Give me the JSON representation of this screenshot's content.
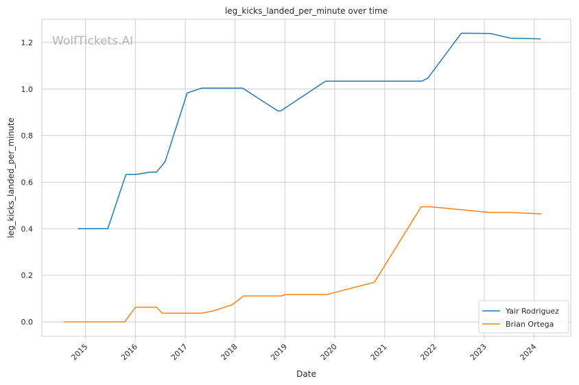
{
  "watermark": "WolfTickets.AI",
  "chart_data": {
    "type": "line",
    "title": "leg_kicks_landed_per_minute over time",
    "xlabel": "Date",
    "ylabel": "leg_kicks_landed_per_minute",
    "x_type": "date",
    "xlim": [
      "2014-02-15",
      "2024-09-25"
    ],
    "ylim": [
      -0.062,
      1.3
    ],
    "x_ticks": [
      "2015-01-01",
      "2016-01-01",
      "2017-01-01",
      "2018-01-01",
      "2019-01-01",
      "2020-01-01",
      "2021-01-01",
      "2022-01-01",
      "2023-01-01",
      "2024-01-01"
    ],
    "x_tick_labels": [
      "2015",
      "2016",
      "2017",
      "2018",
      "2019",
      "2020",
      "2021",
      "2022",
      "2023",
      "2024"
    ],
    "y_ticks": [
      0.0,
      0.2,
      0.4,
      0.6,
      0.8,
      1.0,
      1.2
    ],
    "y_tick_labels": [
      "0.0",
      "0.2",
      "0.4",
      "0.6",
      "0.8",
      "1.0",
      "1.2"
    ],
    "grid": true,
    "legend_position": "bottom-right",
    "series": [
      {
        "name": "Yair Rodriguez",
        "color": "#1f77b4",
        "points": [
          [
            "2014-11-08",
            0.4
          ],
          [
            "2015-06-13",
            0.4
          ],
          [
            "2015-10-24",
            0.633
          ],
          [
            "2016-01-03",
            0.633
          ],
          [
            "2016-04-16",
            0.643
          ],
          [
            "2016-06-04",
            0.643
          ],
          [
            "2016-08-06",
            0.688
          ],
          [
            "2017-01-15",
            0.983
          ],
          [
            "2017-05-01",
            1.004
          ],
          [
            "2017-09-01",
            1.004
          ],
          [
            "2018-02-24",
            1.004
          ],
          [
            "2018-11-10",
            0.906
          ],
          [
            "2018-12-01",
            0.906
          ],
          [
            "2019-09-25",
            1.022
          ],
          [
            "2019-10-26",
            1.034
          ],
          [
            "2020-11-01",
            1.034
          ],
          [
            "2021-10-01",
            1.034
          ],
          [
            "2021-11-13",
            1.047
          ],
          [
            "2022-07-16",
            1.24
          ],
          [
            "2023-02-11",
            1.239
          ],
          [
            "2023-07-08",
            1.219
          ],
          [
            "2024-02-17",
            1.215
          ]
        ]
      },
      {
        "name": "Brian Ortega",
        "color": "#ff7f0e",
        "points": [
          [
            "2014-07-26",
            0.0
          ],
          [
            "2015-06-01",
            0.0
          ],
          [
            "2015-10-15",
            0.0
          ],
          [
            "2016-01-02",
            0.063
          ],
          [
            "2016-06-04",
            0.063
          ],
          [
            "2016-07-16",
            0.037
          ],
          [
            "2017-05-01",
            0.037
          ],
          [
            "2017-08-01",
            0.048
          ],
          [
            "2017-12-09",
            0.073
          ],
          [
            "2018-03-03",
            0.111
          ],
          [
            "2018-08-01",
            0.111
          ],
          [
            "2018-12-08",
            0.111
          ],
          [
            "2019-01-01",
            0.117
          ],
          [
            "2019-06-01",
            0.117
          ],
          [
            "2019-11-01",
            0.117
          ],
          [
            "2020-10-17",
            0.17
          ],
          [
            "2021-09-25",
            0.494
          ],
          [
            "2021-12-01",
            0.494
          ],
          [
            "2022-07-16",
            0.482
          ],
          [
            "2023-02-01",
            0.47
          ],
          [
            "2023-07-15",
            0.47
          ],
          [
            "2024-02-24",
            0.463
          ]
        ]
      }
    ]
  }
}
